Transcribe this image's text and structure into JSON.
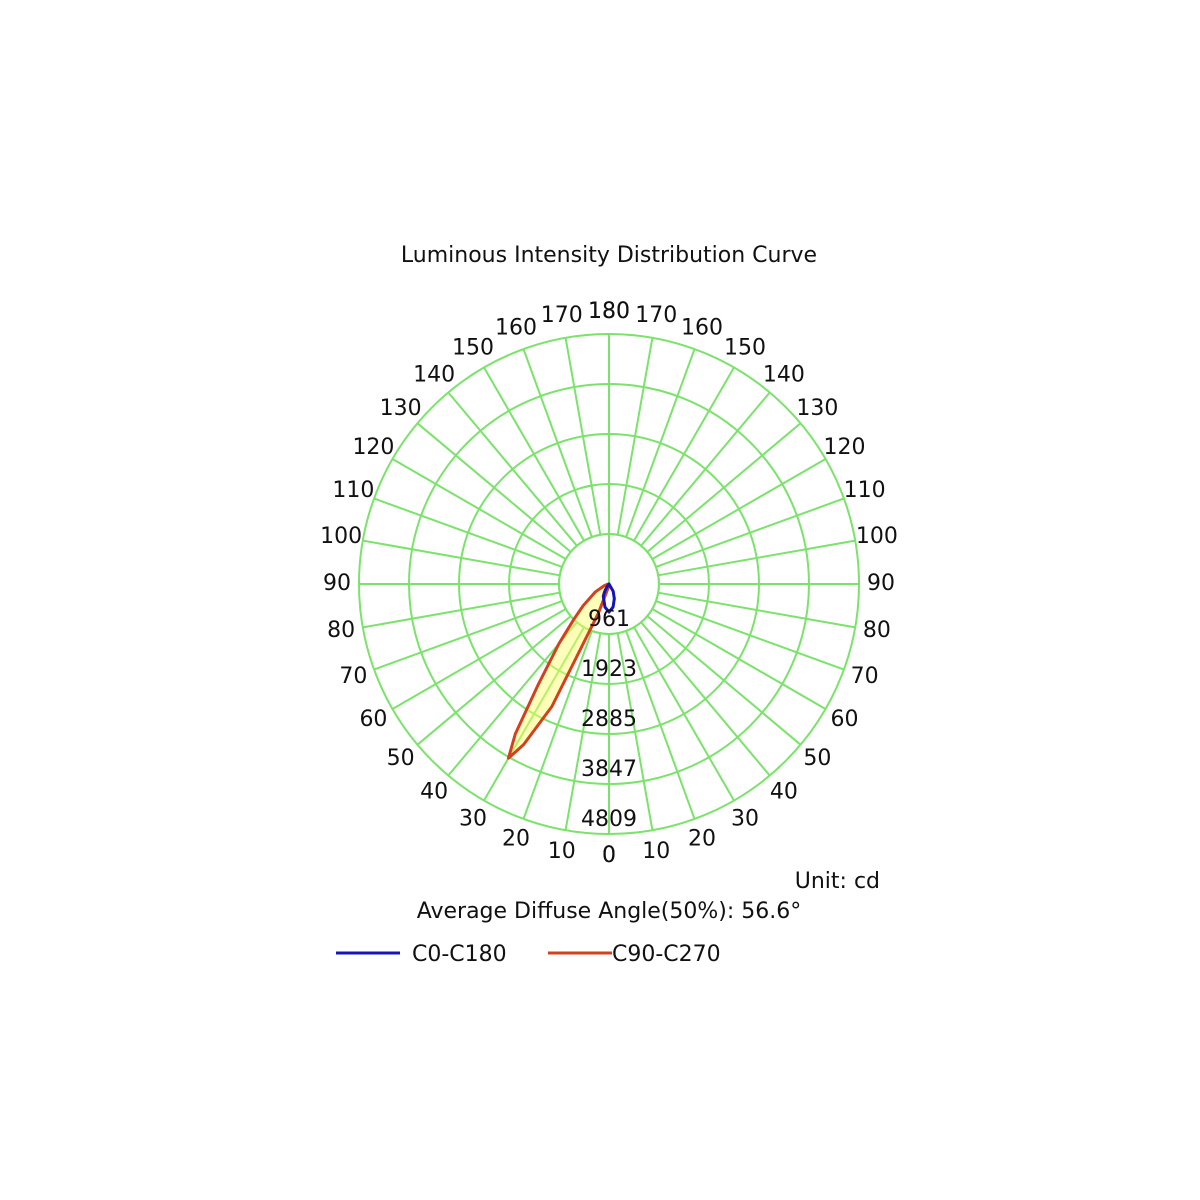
{
  "chart_data": {
    "type": "polar",
    "title": "Luminous Intensity Distribution Curve",
    "x": [
      -90,
      -80,
      -70,
      -60,
      -50,
      -45,
      -40,
      -35,
      -32,
      -30,
      -28,
      -25,
      -20,
      -10,
      0,
      10,
      20,
      30,
      40,
      50,
      60,
      70,
      80,
      90
    ],
    "series": [
      {
        "name": "C0-C180",
        "color": "#1414b8",
        "values": [
          0,
          0,
          0,
          0,
          0,
          0,
          0,
          60,
          120,
          160,
          200,
          260,
          300,
          450,
          540,
          450,
          300,
          160,
          0,
          0,
          0,
          0,
          0,
          0
        ]
      },
      {
        "name": "C90-C270",
        "color": "#d2401e",
        "fill": "#ffff66",
        "values": [
          0,
          30,
          100,
          300,
          650,
          950,
          1500,
          2400,
          3400,
          3870,
          3500,
          2600,
          600,
          60,
          20,
          10,
          0,
          0,
          0,
          0,
          0,
          0,
          0,
          0
        ]
      }
    ],
    "rlim": [
      0,
      4809
    ],
    "rticks": [
      961,
      1923,
      2885,
      3847,
      4809
    ],
    "thetaticks": [
      0,
      10,
      20,
      30,
      40,
      50,
      60,
      70,
      80,
      90,
      100,
      110,
      120,
      130,
      140,
      150,
      160,
      170,
      180
    ],
    "grid_color": "#7be36b",
    "unit": "Unit: cd",
    "note": "Average Diffuse Angle(50%): 56.6°"
  }
}
